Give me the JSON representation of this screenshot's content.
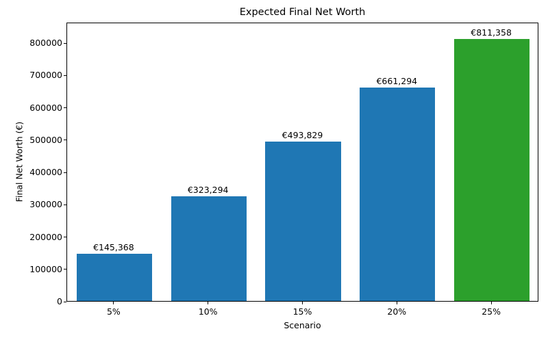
{
  "chart_data": {
    "type": "bar",
    "title": "Expected Final Net Worth",
    "xlabel": "Scenario",
    "ylabel": "Final Net Worth (€)",
    "categories": [
      "5%",
      "10%",
      "15%",
      "20%",
      "25%"
    ],
    "values": [
      145368,
      323294,
      493829,
      661294,
      811358
    ],
    "value_labels": [
      "€145,368",
      "€323,294",
      "€493,829",
      "€661,294",
      "€811,358"
    ],
    "bar_colors": [
      "#1f77b4",
      "#1f77b4",
      "#1f77b4",
      "#1f77b4",
      "#2ca02c"
    ],
    "ylim": [
      0,
      864000
    ],
    "yticks": [
      0,
      100000,
      200000,
      300000,
      400000,
      500000,
      600000,
      700000,
      800000
    ],
    "ytick_labels": [
      "0",
      "100000",
      "200000",
      "300000",
      "400000",
      "500000",
      "600000",
      "700000",
      "800000"
    ],
    "grid": false,
    "legend": "none",
    "bar_width_fraction": 0.8,
    "accent_blue": "#1f77b4",
    "accent_green": "#2ca02c",
    "axis_color": "#000000",
    "background_color": "#ffffff"
  }
}
